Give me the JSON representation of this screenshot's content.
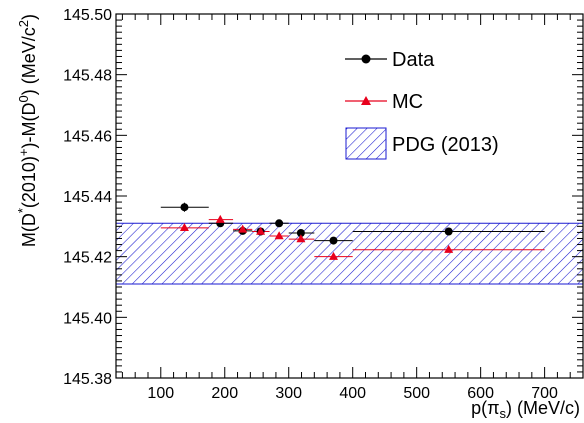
{
  "chart_data": {
    "type": "scatter",
    "xlabel": "p(π_s) (MeV/c)",
    "xlabel_main": "p(π",
    "xlabel_sub": "s",
    "xlabel_unit": ") (MeV/c)",
    "ylabel": "M(D*(2010)+)-M(D0) (MeV/c2)",
    "ylabel_parts": {
      "a": "M(D",
      "star": "*",
      "b": "(2010)",
      "plus": "+",
      "c": ")-M(D",
      "zero": "0",
      "d": ") (MeV/c",
      "two": "2",
      "e": ")"
    },
    "xlim": [
      30,
      760
    ],
    "ylim": [
      145.38,
      145.5
    ],
    "x_ticks": [
      100,
      200,
      300,
      400,
      500,
      600,
      700
    ],
    "x_tick_labels": [
      "100",
      "200",
      "300",
      "400",
      "500",
      "600",
      "700"
    ],
    "y_ticks": [
      145.38,
      145.4,
      145.42,
      145.44,
      145.46,
      145.48,
      145.5
    ],
    "y_tick_labels": [
      "145.38",
      "145.40",
      "145.42",
      "145.44",
      "145.46",
      "145.48",
      "145.50"
    ],
    "grid": false,
    "legend_position": "top-right",
    "pdg_band": {
      "name": "PDG (2013)",
      "center": 145.421,
      "low": 145.411,
      "high": 145.431,
      "color": "#1a1ad0"
    },
    "series": [
      {
        "name": "Data",
        "marker": "circle",
        "color": "#000000",
        "points": [
          {
            "x": 137,
            "xlo": 100,
            "xhi": 175,
            "y": 145.4363,
            "err": 0.0015
          },
          {
            "x": 193,
            "xlo": 175,
            "xhi": 213,
            "y": 145.431,
            "err": 0.001
          },
          {
            "x": 228,
            "xlo": 213,
            "xhi": 243,
            "y": 145.4285,
            "err": 0.001
          },
          {
            "x": 256,
            "xlo": 243,
            "xhi": 270,
            "y": 145.4283,
            "err": 0.001
          },
          {
            "x": 285,
            "xlo": 270,
            "xhi": 300,
            "y": 145.431,
            "err": 0.001
          },
          {
            "x": 319,
            "xlo": 300,
            "xhi": 340,
            "y": 145.4278,
            "err": 0.001
          },
          {
            "x": 370,
            "xlo": 340,
            "xhi": 400,
            "y": 145.4253,
            "err": 0.001
          },
          {
            "x": 550,
            "xlo": 400,
            "xhi": 700,
            "y": 145.4283,
            "err": 0.001
          }
        ]
      },
      {
        "name": "MC",
        "marker": "triangle",
        "color": "#e8001c",
        "points": [
          {
            "x": 137,
            "xlo": 100,
            "xhi": 175,
            "y": 145.4295,
            "err": 0.0005
          },
          {
            "x": 193,
            "xlo": 175,
            "xhi": 213,
            "y": 145.4322,
            "err": 0.0005
          },
          {
            "x": 228,
            "xlo": 213,
            "xhi": 243,
            "y": 145.429,
            "err": 0.0005
          },
          {
            "x": 256,
            "xlo": 243,
            "xhi": 270,
            "y": 145.4283,
            "err": 0.0005
          },
          {
            "x": 285,
            "xlo": 270,
            "xhi": 300,
            "y": 145.4268,
            "err": 0.0005
          },
          {
            "x": 319,
            "xlo": 300,
            "xhi": 340,
            "y": 145.4258,
            "err": 0.0005
          },
          {
            "x": 370,
            "xlo": 340,
            "xhi": 400,
            "y": 145.42,
            "err": 0.0005
          },
          {
            "x": 550,
            "xlo": 400,
            "xhi": 700,
            "y": 145.4223,
            "err": 0.0005
          }
        ]
      }
    ]
  }
}
